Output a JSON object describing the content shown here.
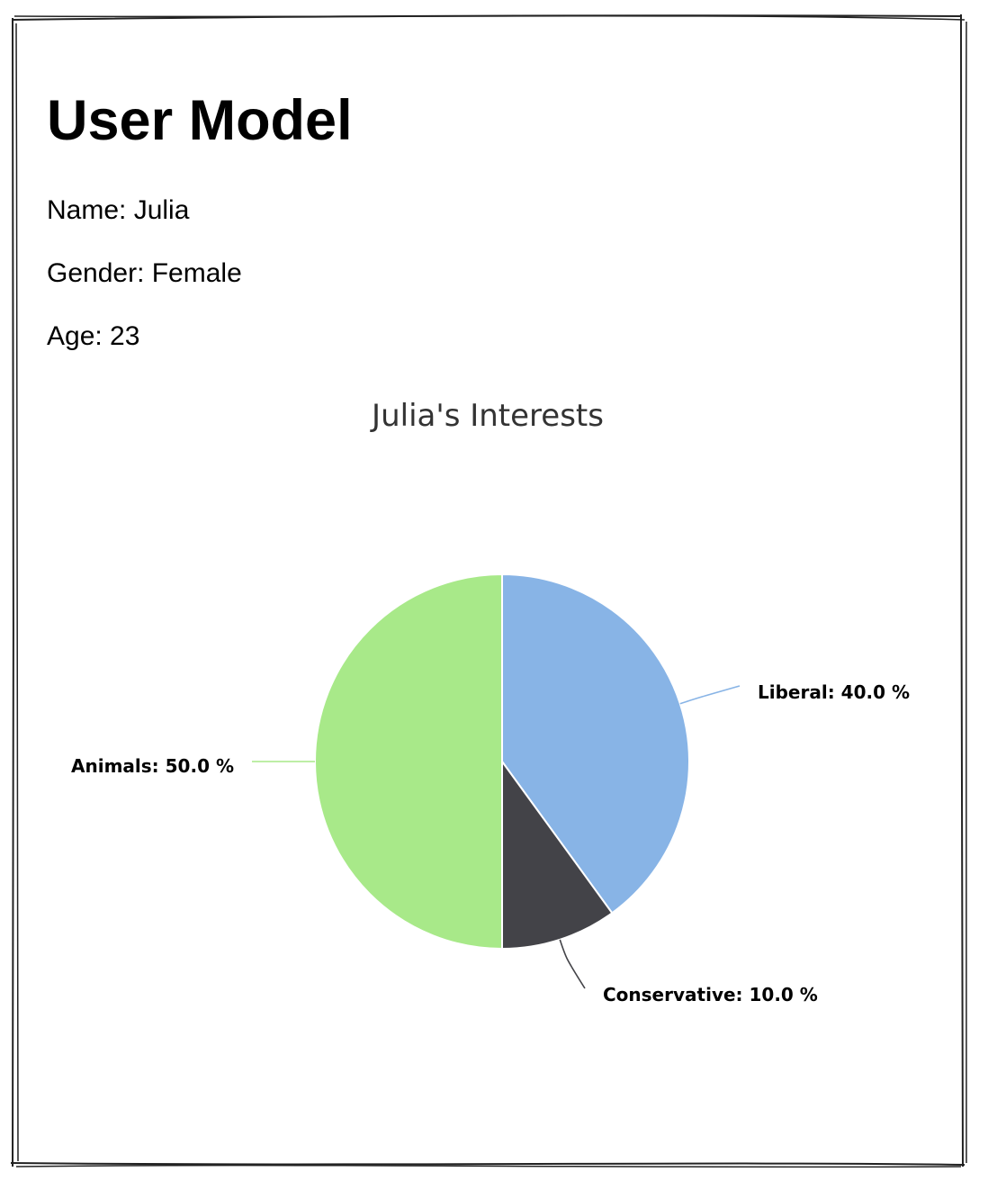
{
  "page": {
    "title": "User Model"
  },
  "profile": {
    "name_line": "Name: Julia",
    "gender_line": "Gender: Female",
    "age_line": "Age: 23"
  },
  "colors": {
    "liberal": "#88b4e6",
    "conservative": "#434348",
    "animals": "#a8e989",
    "title_text": "#333333",
    "frame": "#222222"
  },
  "chart_data": {
    "type": "pie",
    "title": "Julia's Interests",
    "start_angle_deg": 0,
    "direction": "clockwise-from-top",
    "labels_format": "{name}: {value} %",
    "slices": [
      {
        "name": "Liberal",
        "value": 40.0,
        "label": "Liberal: 40.0 %",
        "color": "#88b4e6"
      },
      {
        "name": "Conservative",
        "value": 10.0,
        "label": "Conservative: 10.0 %",
        "color": "#434348"
      },
      {
        "name": "Animals",
        "value": 50.0,
        "label": "Animals: 50.0 %",
        "color": "#a8e989"
      }
    ]
  }
}
